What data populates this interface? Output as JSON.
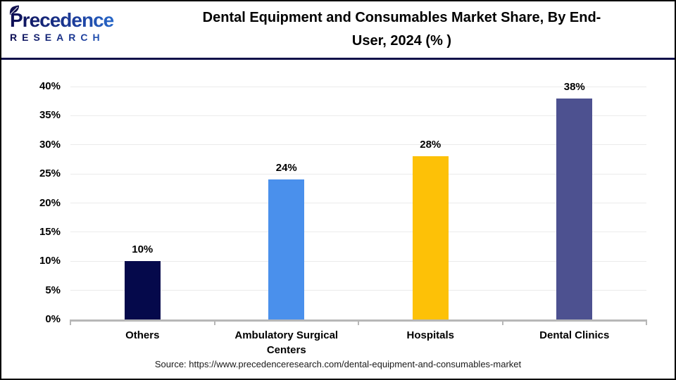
{
  "header": {
    "logo": {
      "wordmark": "Precedence",
      "subtext": "RESEARCH"
    },
    "title": "Dental Equipment and Consumables Market Share, By End-User, 2024 (% )"
  },
  "chart_data": {
    "type": "bar",
    "title": "Dental Equipment and Consumables Market Share, By End-User, 2024 (%)",
    "categories": [
      "Others",
      "Ambulatory Surgical Centers",
      "Hospitals",
      "Dental Clinics"
    ],
    "values": [
      10,
      24,
      28,
      38
    ],
    "value_labels": [
      "10%",
      "24%",
      "28%",
      "38%"
    ],
    "bar_colors": [
      "#05094B",
      "#4A90EC",
      "#FDC107",
      "#4D5190"
    ],
    "xlabel": "",
    "ylabel": "",
    "ylim": [
      0,
      40
    ],
    "ytick_step": 5,
    "ytick_labels": [
      "0%",
      "5%",
      "10%",
      "15%",
      "20%",
      "25%",
      "30%",
      "35%",
      "40%"
    ],
    "grid": true,
    "legend": "none",
    "colors": {
      "gridline": "#EBEBEB",
      "axis": "#B7B7B7",
      "header_rule": "#10104A",
      "logo_navy": "#0D0D52",
      "logo_blue": "#2E7FE0"
    }
  },
  "footer": {
    "source": "Source: https://www.precedenceresearch.com/dental-equipment-and-consumables-market"
  }
}
